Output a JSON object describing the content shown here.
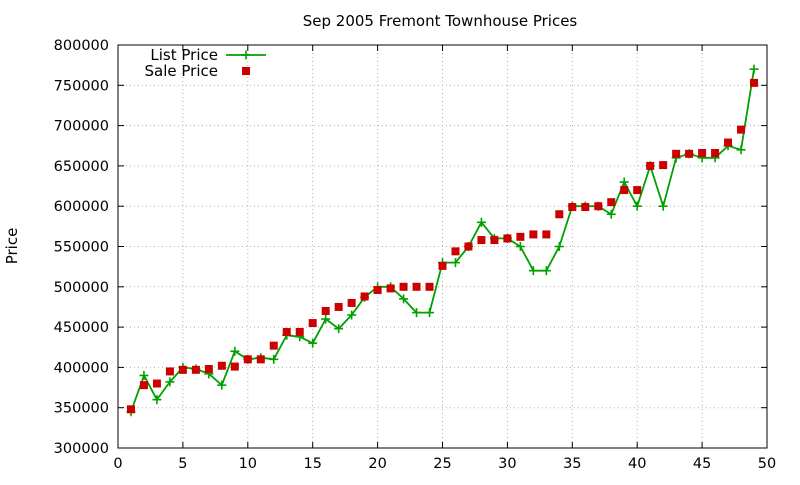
{
  "chart_data": {
    "type": "line",
    "title": "Sep 2005 Fremont Townhouse Prices",
    "xlabel": "",
    "ylabel": "Price",
    "xlim": [
      0,
      50
    ],
    "ylim": [
      300000,
      800000
    ],
    "grid": true,
    "legend": "top-left",
    "x_ticks": [
      "0",
      "5",
      "10",
      "15",
      "20",
      "25",
      "30",
      "35",
      "40",
      "45",
      "50"
    ],
    "y_ticks": [
      "300000",
      "350000",
      "400000",
      "450000",
      "500000",
      "550000",
      "600000",
      "650000",
      "700000",
      "750000",
      "800000"
    ],
    "x": [
      1,
      2,
      3,
      4,
      5,
      6,
      7,
      8,
      9,
      10,
      11,
      12,
      13,
      14,
      15,
      16,
      17,
      18,
      19,
      20,
      21,
      22,
      23,
      24,
      25,
      26,
      27,
      28,
      29,
      30,
      31,
      32,
      33,
      34,
      35,
      36,
      37,
      38,
      39,
      40,
      41,
      42,
      43,
      44,
      45,
      46,
      47,
      48,
      49
    ],
    "series": [
      {
        "name": "List Price",
        "color": "#00a000",
        "marker": "plus",
        "style": "line",
        "values": [
          345000,
          390000,
          360000,
          382000,
          400000,
          398000,
          392000,
          378000,
          420000,
          410000,
          412000,
          410000,
          440000,
          438000,
          430000,
          460000,
          448000,
          465000,
          487000,
          500000,
          500000,
          485000,
          468000,
          468000,
          530000,
          530000,
          550000,
          580000,
          560000,
          560000,
          550000,
          520000,
          520000,
          550000,
          600000,
          600000,
          600000,
          590000,
          630000,
          600000,
          650000,
          600000,
          660000,
          665000,
          660000,
          660000,
          675000,
          670000,
          770000
        ]
      },
      {
        "name": "Sale Price",
        "color": "#cc0000",
        "marker": "square",
        "style": "points",
        "values": [
          348000,
          378000,
          380000,
          395000,
          397000,
          397000,
          398000,
          402000,
          401000,
          410000,
          410000,
          427000,
          444000,
          444000,
          455000,
          470000,
          475000,
          480000,
          488000,
          496000,
          498000,
          500000,
          500000,
          500000,
          526000,
          544000,
          550000,
          558000,
          558000,
          560000,
          562000,
          565000,
          565000,
          590000,
          599000,
          599000,
          600000,
          605000,
          620000,
          620000,
          650000,
          651000,
          665000,
          665000,
          666000,
          666000,
          679000,
          695000,
          753000
        ]
      }
    ]
  }
}
